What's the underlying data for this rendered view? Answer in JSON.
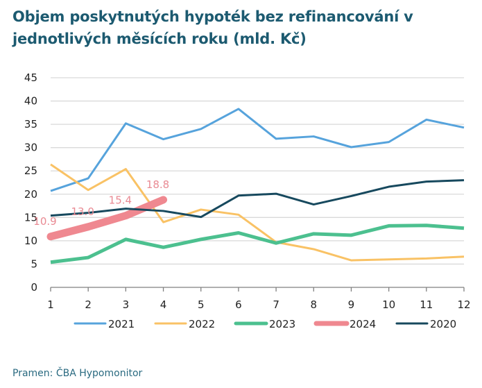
{
  "title": "Objem poskytnutých hypoték bez refinancování v jednotlivých měsících roku (mld. Kč)",
  "source": "Pramen: ČBA Hypomonitor",
  "chart_data": {
    "type": "line",
    "title": "Objem poskytnutých hypoték bez refinancování v jednotlivých měsících roku (mld. Kč)",
    "xlabel": "",
    "ylabel": "",
    "x": [
      1,
      2,
      3,
      4,
      5,
      6,
      7,
      8,
      9,
      10,
      11,
      12
    ],
    "x_tick_labels": [
      "1",
      "2",
      "3",
      "4",
      "5",
      "6",
      "7",
      "8",
      "9",
      "10",
      "11",
      "12"
    ],
    "ylim": [
      0,
      45
    ],
    "y_ticks": [
      0,
      5,
      10,
      15,
      20,
      25,
      30,
      35,
      40,
      45
    ],
    "y_tick_labels": [
      "0",
      "5",
      "10",
      "15",
      "20",
      "25",
      "30",
      "35",
      "40",
      "45"
    ],
    "grid": "horizontal",
    "legend_position": "bottom",
    "series": [
      {
        "name": "2021",
        "color": "#56a3dc",
        "weight": "normal",
        "values": [
          20.7,
          23.4,
          35.2,
          31.8,
          34.0,
          38.3,
          31.9,
          32.4,
          30.1,
          31.2,
          36.0,
          34.3
        ]
      },
      {
        "name": "2022",
        "color": "#f9c265",
        "weight": "normal",
        "values": [
          26.4,
          20.9,
          25.4,
          14.0,
          16.7,
          15.6,
          9.7,
          8.2,
          5.8,
          6.0,
          6.2,
          6.6
        ]
      },
      {
        "name": "2023",
        "color": "#4cc08f",
        "weight": "bold",
        "values": [
          5.4,
          6.4,
          10.3,
          8.6,
          10.3,
          11.7,
          9.5,
          11.5,
          11.2,
          13.2,
          13.3,
          12.7
        ]
      },
      {
        "name": "2024",
        "color": "#ef8890",
        "weight": "heavy",
        "values": [
          10.9,
          13.0,
          15.4,
          18.8
        ],
        "data_labels": [
          "10.9",
          "13.0",
          "15.4",
          "18.8"
        ]
      },
      {
        "name": "2020",
        "color": "#17495e",
        "weight": "normal",
        "values": [
          15.4,
          16.0,
          16.9,
          16.4,
          15.1,
          19.7,
          20.1,
          17.8,
          19.6,
          21.6,
          22.7,
          23.0
        ]
      }
    ],
    "legend_order": [
      "2021",
      "2022",
      "2023",
      "2024",
      "2020"
    ],
    "gridline_color": "#d9d9d9",
    "axis_color": "#808080"
  }
}
